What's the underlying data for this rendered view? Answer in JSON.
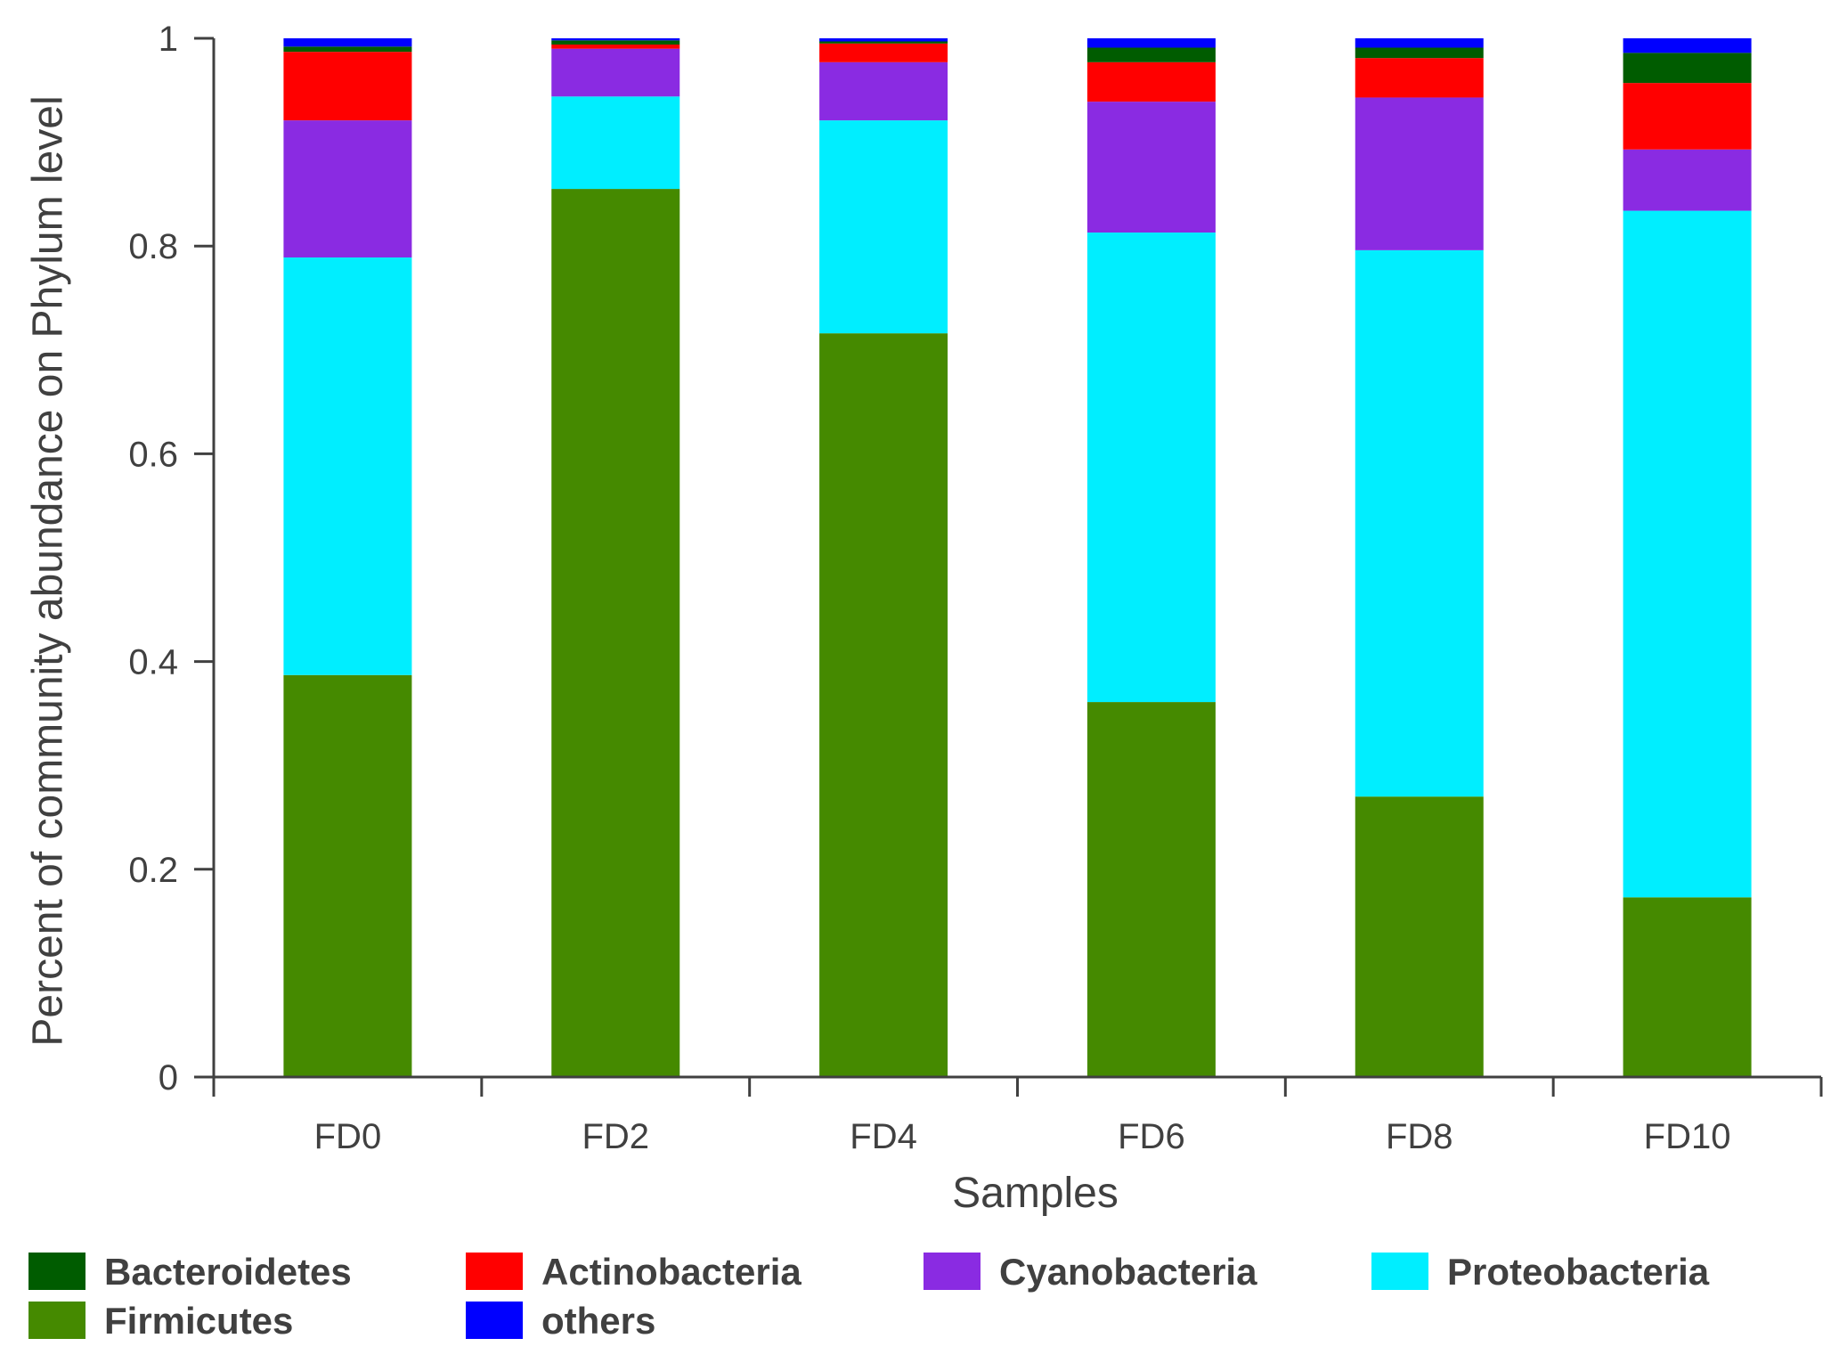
{
  "chart_data": {
    "type": "bar",
    "stacked": true,
    "categories": [
      "FD0",
      "FD2",
      "FD4",
      "FD6",
      "FD8",
      "FD10"
    ],
    "xlabel": "Samples",
    "ylabel": "Percent of community abundance on Phylum level",
    "ylim": [
      0,
      1
    ],
    "yticks": [
      0,
      0.2,
      0.4,
      0.6,
      0.8,
      1
    ],
    "ytick_labels": [
      "0",
      "0.2",
      "0.4",
      "0.6",
      "0.8",
      "1"
    ],
    "series": [
      {
        "name": "Firmicutes",
        "color": "#458A00",
        "values": [
          0.387,
          0.855,
          0.716,
          0.361,
          0.27,
          0.173
        ]
      },
      {
        "name": "Proteobacteria",
        "color": "#00EEFF",
        "values": [
          0.402,
          0.089,
          0.205,
          0.452,
          0.526,
          0.661
        ]
      },
      {
        "name": "Cyanobacteria",
        "color": "#8A2BE2",
        "values": [
          0.132,
          0.046,
          0.056,
          0.126,
          0.147,
          0.059
        ]
      },
      {
        "name": "Actinobacteria",
        "color": "#FF0000",
        "values": [
          0.066,
          0.004,
          0.018,
          0.038,
          0.038,
          0.064
        ]
      },
      {
        "name": "Bacteroidetes",
        "color": "#005C00",
        "values": [
          0.005,
          0.004,
          0.002,
          0.014,
          0.01,
          0.029
        ]
      },
      {
        "name": "others",
        "color": "#0000FF",
        "values": [
          0.008,
          0.002,
          0.003,
          0.009,
          0.009,
          0.014
        ]
      }
    ],
    "legend": {
      "position": "bottom",
      "order": [
        "Bacteroidetes",
        "Actinobacteria",
        "Cyanobacteria",
        "Proteobacteria",
        "Firmicutes",
        "others"
      ]
    }
  }
}
